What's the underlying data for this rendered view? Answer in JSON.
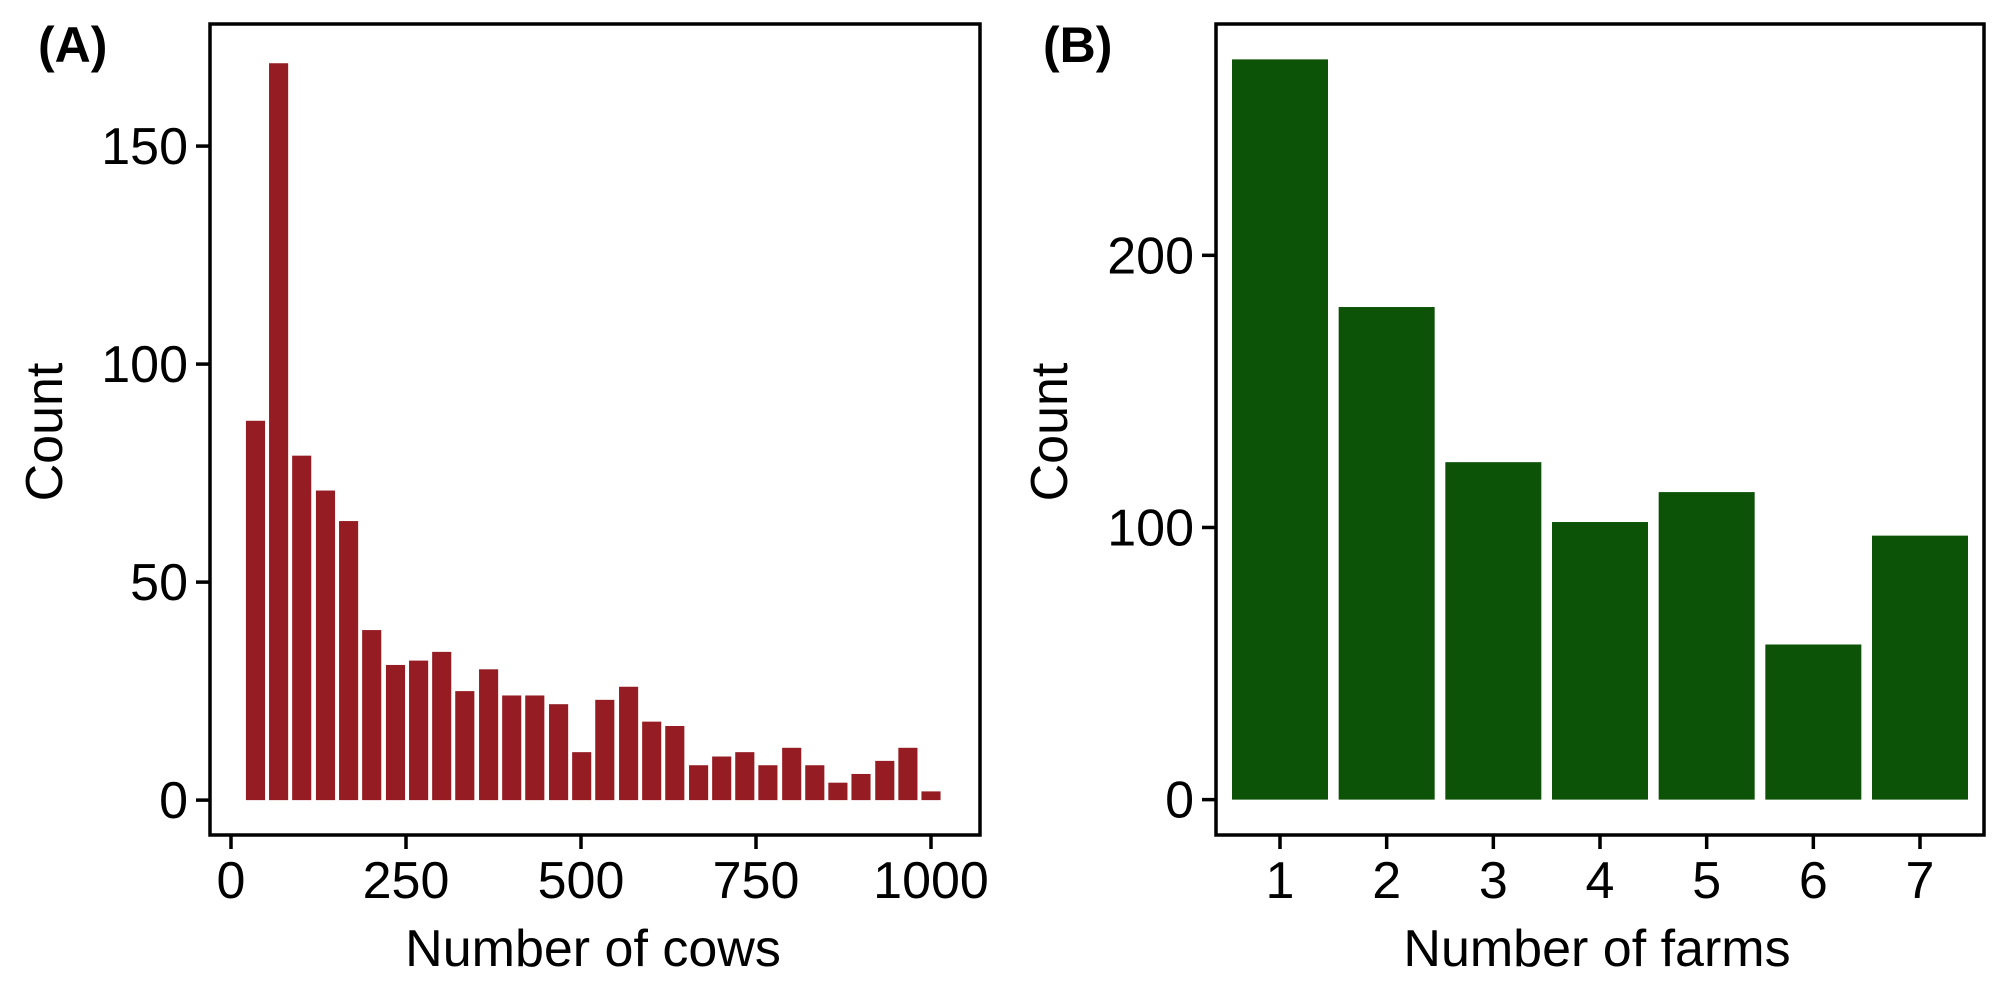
{
  "colors": {
    "panel_a_bar": "#951c22",
    "panel_b_bar": "#0c5307",
    "axis": "#000000",
    "background": "#ffffff"
  },
  "chart_data": [
    {
      "panel": "(A)",
      "type": "bar",
      "title": "",
      "xlabel": "Number of cows",
      "ylabel": "Count",
      "xlim": [
        -30,
        1070
      ],
      "ylim": [
        -8,
        178
      ],
      "xticks": [
        0,
        250,
        500,
        750,
        1000
      ],
      "yticks": [
        0,
        50,
        100,
        150
      ],
      "xtick_labels": [
        "0",
        "250",
        "500",
        "750",
        "1000"
      ],
      "ytick_labels": [
        "0",
        "50",
        "100",
        "150"
      ],
      "bin_width": 33.3,
      "grid": false,
      "x": [
        35,
        68,
        101,
        135,
        168,
        201,
        235,
        268,
        301,
        334,
        368,
        401,
        434,
        468,
        501,
        534,
        568,
        601,
        634,
        668,
        701,
        734,
        767,
        801,
        834,
        867,
        900,
        934,
        967,
        1000
      ],
      "values": [
        87,
        169,
        79,
        71,
        64,
        39,
        31,
        32,
        34,
        25,
        30,
        24,
        24,
        22,
        11,
        23,
        26,
        18,
        17,
        8,
        10,
        11,
        8,
        12,
        8,
        4,
        6,
        9,
        12,
        2
      ]
    },
    {
      "panel": "(B)",
      "type": "bar",
      "title": "",
      "xlabel": "Number of farms",
      "ylabel": "Count",
      "xlim": [
        0.4,
        7.6
      ],
      "ylim": [
        -13,
        285
      ],
      "yticks": [
        0,
        100,
        200
      ],
      "ytick_labels": [
        "0",
        "100",
        "200"
      ],
      "categories": [
        "1",
        "2",
        "3",
        "4",
        "5",
        "6",
        "7"
      ],
      "values": [
        272,
        181,
        124,
        102,
        113,
        57,
        97
      ],
      "grid": false
    }
  ]
}
